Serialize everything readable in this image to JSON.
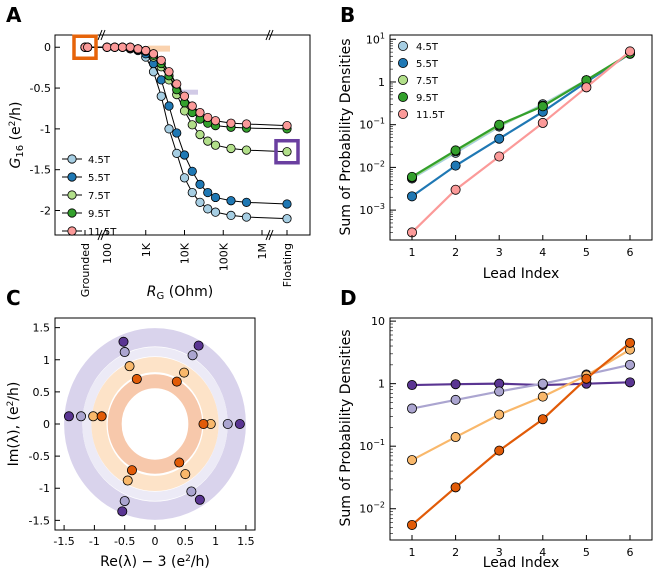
{
  "chart_data": [
    {
      "panel": "A",
      "type": "line",
      "xlabel": "R",
      "xlabel_sub": "G",
      "xlabel_unit": " (Ohm)",
      "ylabel_main": "G",
      "ylabel_sub": "16",
      "ylabel_unit": "  (e",
      "ylabel_sup": "2",
      "ylabel_tail": "/h)",
      "x_ticks": [
        "Grounded",
        "100",
        "1K",
        "10K",
        "100K",
        "1M",
        "Floating"
      ],
      "y_ticks": [
        "0",
        "-0.5",
        "-1",
        "-1.5",
        "-2"
      ],
      "ylim": [
        -2.3,
        0.15
      ],
      "x_log": [
        1,
        7
      ],
      "series": [
        {
          "name": "4.5T",
          "color": "#a6cee3",
          "x": [
            1.5,
            2,
            2.2,
            2.4,
            2.6,
            2.8,
            3,
            3.2,
            3.4,
            3.6,
            3.8,
            4,
            4.2,
            4.4,
            4.6,
            4.8,
            5.2,
            5.6
          ],
          "y": [
            0,
            0,
            0,
            0,
            -0.02,
            -0.04,
            -0.12,
            -0.3,
            -0.6,
            -1.0,
            -1.3,
            -1.6,
            -1.78,
            -1.9,
            -1.98,
            -2.02,
            -2.06,
            -2.08
          ],
          "floating": -2.1,
          "grounded": 0
        },
        {
          "name": "5.5T",
          "color": "#1f78b4",
          "x": [
            1.5,
            2,
            2.2,
            2.4,
            2.6,
            2.8,
            3,
            3.2,
            3.4,
            3.6,
            3.8,
            4,
            4.2,
            4.4,
            4.6,
            4.8,
            5.2,
            5.6
          ],
          "y": [
            0,
            0,
            0,
            0,
            -0.01,
            -0.03,
            -0.08,
            -0.2,
            -0.4,
            -0.72,
            -1.05,
            -1.32,
            -1.52,
            -1.68,
            -1.78,
            -1.84,
            -1.88,
            -1.9
          ],
          "floating": -1.92,
          "grounded": 0
        },
        {
          "name": "7.5T",
          "color": "#b2df8a",
          "x": [
            1.5,
            2,
            2.2,
            2.4,
            2.6,
            2.8,
            3,
            3.2,
            3.4,
            3.6,
            3.8,
            4,
            4.2,
            4.4,
            4.6,
            4.8,
            5.2,
            5.6
          ],
          "y": [
            0,
            0,
            0,
            0,
            0,
            -0.02,
            -0.05,
            -0.12,
            -0.24,
            -0.4,
            -0.58,
            -0.78,
            -0.95,
            -1.07,
            -1.15,
            -1.2,
            -1.24,
            -1.26
          ],
          "floating": -1.28,
          "grounded": 0
        },
        {
          "name": "9.5T",
          "color": "#33a02c",
          "x": [
            1.5,
            2,
            2.2,
            2.4,
            2.6,
            2.8,
            3,
            3.2,
            3.4,
            3.6,
            3.8,
            4,
            4.2,
            4.4,
            4.6,
            4.8,
            5.2,
            5.6
          ],
          "y": [
            0,
            0,
            0,
            0,
            0,
            -0.02,
            -0.04,
            -0.1,
            -0.2,
            -0.35,
            -0.52,
            -0.68,
            -0.8,
            -0.88,
            -0.93,
            -0.96,
            -0.98,
            -0.99
          ],
          "floating": -1.0,
          "grounded": 0
        },
        {
          "name": "11.5T",
          "color": "#fb9a99",
          "x": [
            1.5,
            2,
            2.2,
            2.4,
            2.6,
            2.8,
            3,
            3.2,
            3.4,
            3.6,
            3.8,
            4,
            4.2,
            4.4,
            4.6,
            4.8,
            5.2,
            5.6
          ],
          "y": [
            0,
            0,
            0,
            0,
            0,
            -0.02,
            -0.04,
            -0.08,
            -0.16,
            -0.3,
            -0.45,
            -0.6,
            -0.72,
            -0.8,
            -0.86,
            -0.9,
            -0.93,
            -0.94
          ],
          "floating": -0.96,
          "grounded": 0
        }
      ],
      "highlights": [
        {
          "name": "grounded-box",
          "color": "#e6640a"
        },
        {
          "name": "floating-box",
          "color": "#6a3fa0"
        }
      ]
    },
    {
      "panel": "B",
      "type": "line",
      "xlabel": "Lead Index",
      "ylabel": "Sum of Probability Densities",
      "x_ticks": [
        "1",
        "2",
        "3",
        "4",
        "5",
        "6"
      ],
      "y_ticks": [
        {
          "b": "10",
          "e": "1"
        },
        {
          "b": "1",
          "e": ""
        },
        {
          "b": "10",
          "e": "−1"
        },
        {
          "b": "10",
          "e": "−2"
        },
        {
          "b": "10",
          "e": "−3"
        }
      ],
      "y_exp_range": [
        -3.7,
        1.1
      ],
      "series": [
        {
          "name": "4.5T",
          "color": "#a6cee3",
          "x": [
            1,
            2,
            3,
            4,
            5,
            6
          ],
          "y": [
            0.0055,
            0.022,
            0.09,
            0.3,
            1.1,
            4.6
          ]
        },
        {
          "name": "5.5T",
          "color": "#1f78b4",
          "x": [
            1,
            2,
            3,
            4,
            5,
            6
          ],
          "y": [
            0.0021,
            0.011,
            0.047,
            0.2,
            1.0,
            4.6
          ]
        },
        {
          "name": "7.5T",
          "color": "#b2df8a",
          "x": [
            1,
            2,
            3,
            4,
            5,
            6
          ],
          "y": [
            0.0058,
            0.024,
            0.095,
            0.28,
            1.1,
            4.6
          ]
        },
        {
          "name": "9.5T",
          "color": "#33a02c",
          "x": [
            1,
            2,
            3,
            4,
            5,
            6
          ],
          "y": [
            0.006,
            0.025,
            0.1,
            0.27,
            1.1,
            4.6
          ]
        },
        {
          "name": "11.5T",
          "color": "#fb9a99",
          "x": [
            1,
            2,
            3,
            4,
            5,
            6
          ],
          "y": [
            0.0003,
            0.003,
            0.018,
            0.11,
            0.75,
            5.2
          ]
        }
      ]
    },
    {
      "panel": "C",
      "type": "scatter",
      "xlabel_main": "Re(λ) − 3  (e",
      "xlabel_sup": "2",
      "xlabel_tail": "/h)",
      "ylabel_main": "Im(λ),  (e",
      "ylabel_sup": "2",
      "ylabel_tail": "/h)",
      "x_ticks": [
        "-1.5",
        "-1",
        "-0.5",
        "0",
        "0.5",
        "1",
        "1.5"
      ],
      "y_ticks": [
        "1.5",
        "1",
        "0.5",
        "0",
        "-0.5",
        "-1",
        "-1.5"
      ],
      "xlim": [
        -1.65,
        1.65
      ],
      "ylim": [
        -1.65,
        1.65
      ],
      "rings": [
        {
          "color": "#d9d3ec",
          "r_inner": 1.2,
          "r_outer": 1.5
        },
        {
          "color": "#eceaf6",
          "r_inner": 1.05,
          "r_outer": 1.2
        },
        {
          "color": "#fde3c8",
          "r_inner": 0.8,
          "r_outer": 1.05
        },
        {
          "color": "#f7c8ab",
          "r_inner": 0.55,
          "r_outer": 0.78
        }
      ],
      "series": [
        {
          "name": "purple",
          "color": "#5a3592",
          "points": [
            [
              -1.42,
              0.12
            ],
            [
              -0.52,
              1.28
            ],
            [
              0.72,
              1.22
            ],
            [
              1.4,
              0
            ],
            [
              0.74,
              -1.18
            ],
            [
              -0.54,
              -1.36
            ]
          ]
        },
        {
          "name": "lavender",
          "color": "#aba5d0",
          "points": [
            [
              -1.22,
              0.12
            ],
            [
              -0.5,
              1.12
            ],
            [
              0.62,
              1.07
            ],
            [
              1.2,
              0
            ],
            [
              0.6,
              -1.05
            ],
            [
              -0.5,
              -1.2
            ]
          ]
        },
        {
          "name": "light-orange",
          "color": "#f9b86b",
          "points": [
            [
              -1.02,
              0.12
            ],
            [
              -0.42,
              0.9
            ],
            [
              0.48,
              0.8
            ],
            [
              0.92,
              0
            ],
            [
              0.5,
              -0.78
            ],
            [
              -0.45,
              -0.88
            ]
          ]
        },
        {
          "name": "orange",
          "color": "#e15b08",
          "points": [
            [
              -0.88,
              0.12
            ],
            [
              -0.3,
              0.7
            ],
            [
              0.36,
              0.66
            ],
            [
              0.8,
              0
            ],
            [
              0.4,
              -0.6
            ],
            [
              -0.38,
              -0.72
            ]
          ]
        }
      ]
    },
    {
      "panel": "D",
      "type": "line",
      "xlabel": "Lead Index",
      "ylabel": "Sum of Probability Densities",
      "x_ticks": [
        "1",
        "2",
        "3",
        "4",
        "5",
        "6"
      ],
      "y_ticks": [
        {
          "b": "10",
          "e": ""
        },
        {
          "b": "1",
          "e": ""
        },
        {
          "b": "10",
          "e": "−1"
        },
        {
          "b": "10",
          "e": "−2"
        }
      ],
      "y_exp_range": [
        -2.5,
        1.05
      ],
      "series": [
        {
          "name": "purple",
          "color": "#5a3592",
          "x": [
            1,
            2,
            3,
            4,
            5,
            6
          ],
          "y": [
            0.95,
            0.98,
            1.0,
            0.95,
            1.0,
            1.05
          ]
        },
        {
          "name": "lavender",
          "color": "#aba5d0",
          "x": [
            1,
            2,
            3,
            4,
            5,
            6
          ],
          "y": [
            0.4,
            0.55,
            0.75,
            1.0,
            1.4,
            2.0
          ]
        },
        {
          "name": "light-orange",
          "color": "#f9b86b",
          "x": [
            1,
            2,
            3,
            4,
            5,
            6
          ],
          "y": [
            0.06,
            0.14,
            0.32,
            0.62,
            1.35,
            3.5
          ]
        },
        {
          "name": "orange",
          "color": "#e15b08",
          "x": [
            1,
            2,
            3,
            4,
            5,
            6
          ],
          "y": [
            0.0055,
            0.022,
            0.085,
            0.27,
            1.2,
            4.5
          ]
        }
      ]
    }
  ],
  "panel_labels": [
    "A",
    "B",
    "C",
    "D"
  ]
}
